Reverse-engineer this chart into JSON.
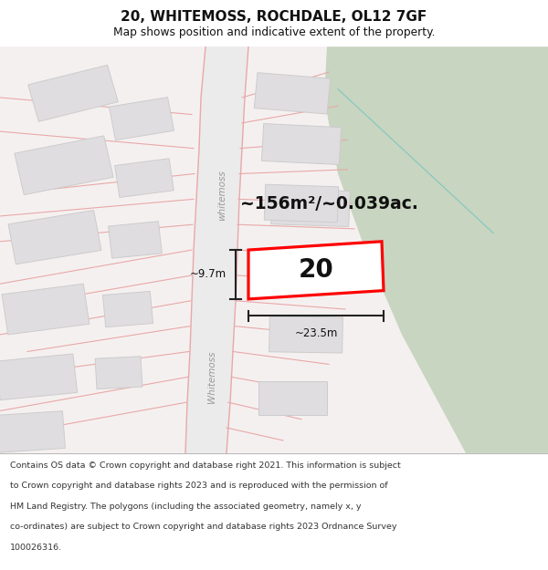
{
  "title": "20, WHITEMOSS, ROCHDALE, OL12 7GF",
  "subtitle": "Map shows position and indicative extent of the property.",
  "area_text": "~156m²/~0.039ac.",
  "width_label": "~23.5m",
  "height_label": "~9.7m",
  "plot_number": "20",
  "footer_lines": [
    "Contains OS data © Crown copyright and database right 2021. This information is subject",
    "to Crown copyright and database rights 2023 and is reproduced with the permission of",
    "HM Land Registry. The polygons (including the associated geometry, namely x, y",
    "co-ordinates) are subject to Crown copyright and database rights 2023 Ordnance Survey",
    "100026316."
  ],
  "map_bg": "#f5f0f0",
  "white_bg": "#ffffff",
  "green_color": "#c8d5c0",
  "green_line": "#b0c8b8",
  "road_band_color": "#eeeeee",
  "road_line_color": "#e8a8a8",
  "road_line_color2": "#d08080",
  "building_fill": "#e0dde0",
  "building_edge": "#cccccc",
  "plot_fill": "#ffffff",
  "highlight_color": "#ff0000",
  "text_color": "#111111",
  "dim_color": "#222222",
  "footer_sep": "#bbbbbb",
  "whitemoss_label_color": "#999999",
  "teal_line": "#80c8c0"
}
